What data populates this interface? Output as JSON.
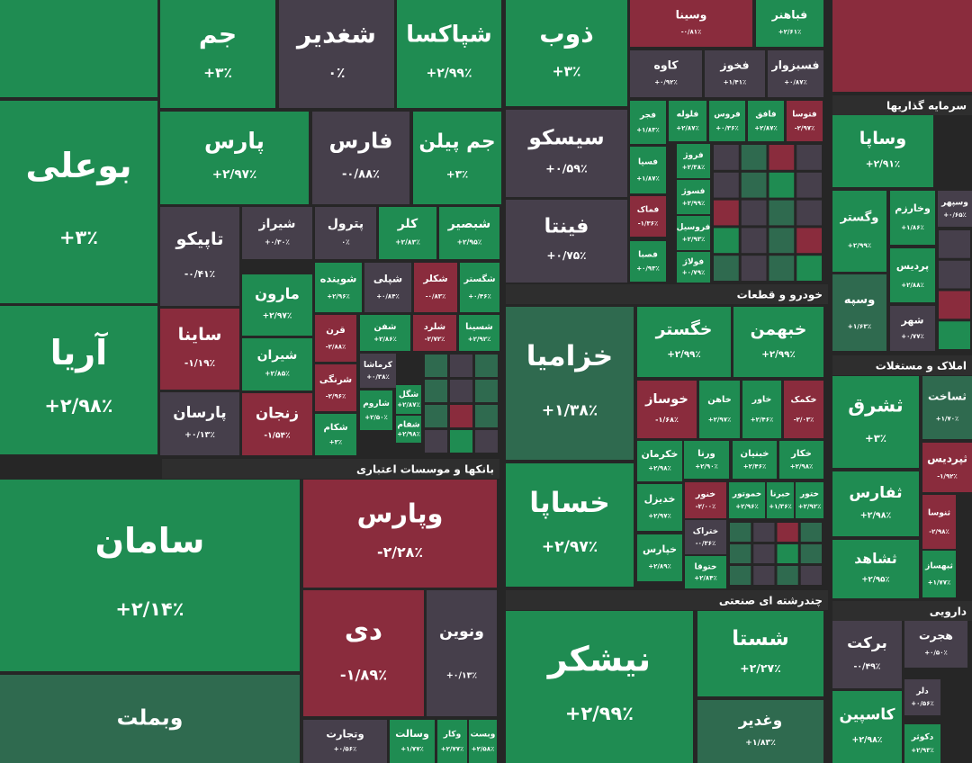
{
  "tiles": [
    {
      "name": "بوعلی",
      "change": "+۳٪"
    },
    {
      "name": "آریا",
      "change": "+۲/۹۸٪"
    },
    {
      "name": "جم",
      "change": "+۳٪"
    },
    {
      "name": "شغدیر",
      "change": "۰٪"
    },
    {
      "name": "شپاکسا",
      "change": "+۲/۹۹٪"
    },
    {
      "name": "پارس",
      "change": "+۲/۹۷٪"
    },
    {
      "name": "فارس",
      "change": "-۰/۸۸٪"
    },
    {
      "name": "جم پیلن",
      "change": "+۳٪"
    },
    {
      "name": "تاپیکو",
      "change": "-۰/۴۱٪"
    },
    {
      "name": "شیراز",
      "change": "+۰/۳۰٪"
    },
    {
      "name": "پترول",
      "change": "۰٪"
    },
    {
      "name": "کلر",
      "change": "+۲/۸۳٪"
    },
    {
      "name": "شبصیر",
      "change": "+۲/۹۵٪"
    },
    {
      "name": "مارون",
      "change": "+۲/۹۷٪"
    },
    {
      "name": "شوینده",
      "change": "+۲/۹۶٪"
    },
    {
      "name": "شپلی",
      "change": "+۰/۸۴٪"
    },
    {
      "name": "شکلر",
      "change": "-۰/۸۳٪"
    },
    {
      "name": "شگستر",
      "change": "+۰/۴۶٪"
    },
    {
      "name": "ساینا",
      "change": "-۱/۱۹٪"
    },
    {
      "name": "شیران",
      "change": "+۲/۸۵٪"
    },
    {
      "name": "پارسان",
      "change": "+۰/۱۳٪"
    },
    {
      "name": "زنجان",
      "change": "-۱/۵۴٪"
    },
    {
      "name": "قرن",
      "change": "-۲/۸۸٪"
    },
    {
      "name": "شفن",
      "change": "+۲/۸۶٪"
    },
    {
      "name": "شلرد",
      "change": "-۲/۷۲٪"
    },
    {
      "name": "شسینا",
      "change": "+۲/۹۲٪"
    },
    {
      "name": "شرنگی",
      "change": "-۲/۹۶٪"
    },
    {
      "name": "کرماشا",
      "change": "+۰/۳۸٪"
    },
    {
      "name": "شاروم",
      "change": "+۲/۵۰٪"
    },
    {
      "name": "شگل",
      "change": "+۲/۸۷٪"
    },
    {
      "name": "شفام",
      "change": "+۲/۹۸٪"
    },
    {
      "name": "شکام",
      "change": "+۳٪"
    },
    {
      "name": "سامان",
      "change": "+۲/۱۴٪"
    },
    {
      "name": "وبملت"
    },
    {
      "name": "وپارس",
      "change": "-۲/۲۸٪"
    },
    {
      "name": "دی",
      "change": "-۱/۸۹٪"
    },
    {
      "name": "ونوین",
      "change": "+۰/۱۳٪"
    },
    {
      "name": "وتجارت",
      "change": "+۰/۵۶٪"
    },
    {
      "name": "وسالت",
      "change": "+۱/۷۷٪"
    },
    {
      "name": "وکار",
      "change": "+۲/۷۷٪"
    },
    {
      "name": "وبست",
      "change": "+۲/۵۸٪"
    },
    {
      "name": "ذوب",
      "change": "+۳٪"
    },
    {
      "name": "وسینا",
      "change": "-۰/۸۱٪"
    },
    {
      "name": "فباهنر",
      "change": "+۲/۶۱٪"
    },
    {
      "name": "کاوه",
      "change": "+۰/۹۲٪"
    },
    {
      "name": "فخوز",
      "change": "+۱/۴۱٪"
    },
    {
      "name": "فسبزوار",
      "change": "+۰/۸۷٪"
    },
    {
      "name": "سیسکو",
      "change": "+۰/۵۹٪"
    },
    {
      "name": "فینتا",
      "change": "+۰/۷۵٪"
    },
    {
      "name": "فجر",
      "change": "+۱/۸۳٪"
    },
    {
      "name": "فلوله",
      "change": "+۲/۸۷٪"
    },
    {
      "name": "فروس",
      "change": "+۰/۳۶٪"
    },
    {
      "name": "فافق",
      "change": "+۲/۸۷٪"
    },
    {
      "name": "فتوسا",
      "change": "-۲/۹۷٪"
    },
    {
      "name": "فسپا",
      "change": "+۱/۸۷٪"
    },
    {
      "name": "فروژ",
      "change": "+۲/۳۸٪"
    },
    {
      "name": "فسوژ",
      "change": "+۲/۹۹٪"
    },
    {
      "name": "فماک",
      "change": "-۱/۳۶٪"
    },
    {
      "name": "فروسیل",
      "change": "+۲/۹۳٪"
    },
    {
      "name": "فصبا",
      "change": "+۰/۹۳٪"
    },
    {
      "name": "فولاژ",
      "change": "+۰/۷۹٪"
    },
    {
      "name": "خزامیا",
      "change": "+۱/۳۸٪"
    },
    {
      "name": "خگستر",
      "change": "+۲/۹۹٪"
    },
    {
      "name": "خبهمن",
      "change": "+۲/۹۹٪"
    },
    {
      "name": "خوساز",
      "change": "-۱/۶۸٪"
    },
    {
      "name": "خاهن",
      "change": "+۲/۹۷٪"
    },
    {
      "name": "خاور",
      "change": "+۲/۴۶٪"
    },
    {
      "name": "خکمک",
      "change": "-۲/۰۳٪"
    },
    {
      "name": "خکرمان",
      "change": "+۲/۹۸٪"
    },
    {
      "name": "ورنا",
      "change": "+۲/۹۰٪"
    },
    {
      "name": "خبنیان",
      "change": "+۲/۴۶٪"
    },
    {
      "name": "خکار",
      "change": "+۲/۹۸٪"
    },
    {
      "name": "خساپا",
      "change": "+۲/۹۷٪"
    },
    {
      "name": "خدیزل",
      "change": "+۲/۹۷٪"
    },
    {
      "name": "خنور",
      "change": "-۲/۰۰٪"
    },
    {
      "name": "خموتور",
      "change": "+۲/۹۶٪"
    },
    {
      "name": "خبرنا",
      "change": "+۱/۳۶٪"
    },
    {
      "name": "ختور",
      "change": "+۲/۹۲٪"
    },
    {
      "name": "ختراک",
      "change": "-۰/۳۶٪"
    },
    {
      "name": "خپارس",
      "change": "+۲/۸۹٪"
    },
    {
      "name": "ختوقا",
      "change": "+۲/۸۴٪"
    },
    {
      "name": "نیشکر",
      "change": "+۲/۹۹٪"
    },
    {
      "name": "شستا",
      "change": "+۲/۲۷٪"
    },
    {
      "name": "وغدیر",
      "change": "+۱/۸۳٪"
    },
    {
      "name": "وساپا",
      "change": "+۲/۹۱٪"
    },
    {
      "name": "وگستر",
      "change": "+۲/۹۹٪"
    },
    {
      "name": "وخارزم",
      "change": "+۱/۸۶٪"
    },
    {
      "name": "وسپهر",
      "change": "+۰/۶۵٪"
    },
    {
      "name": "پردیس",
      "change": "+۲/۸۸٪"
    },
    {
      "name": "وسپه",
      "change": "+۱/۶۳٪"
    },
    {
      "name": "شهر",
      "change": "+۰/۷۷٪"
    },
    {
      "name": "ثشرق",
      "change": "+۳٪"
    },
    {
      "name": "ثساخت",
      "change": "+۱/۷۰٪"
    },
    {
      "name": "ثفارس",
      "change": "+۲/۹۸٪"
    },
    {
      "name": "ثپردیس",
      "change": "-۱/۹۲٪"
    },
    {
      "name": "ثنوسا",
      "change": "-۲/۹۸٪"
    },
    {
      "name": "ثشاهد",
      "change": "+۲/۹۵٪"
    },
    {
      "name": "ثبهساز",
      "change": "+۱/۷۷٪"
    },
    {
      "name": "برکت",
      "change": "-۰/۴۹٪"
    },
    {
      "name": "هجرت",
      "change": "+۰/۵۰٪"
    },
    {
      "name": "دلر",
      "change": "+۰/۵۶٪"
    },
    {
      "name": "کاسپین",
      "change": "+۲/۹۸٪"
    },
    {
      "name": "دکوثر",
      "change": "+۲/۹۳٪"
    }
  ],
  "sectors": [
    "بانکها و موسسات اعتباری",
    "خودرو و قطعات",
    "چندرشته ای صنعتی",
    "سرمایه گذاریها",
    "املاک و مستغلات",
    "دارویی"
  ]
}
